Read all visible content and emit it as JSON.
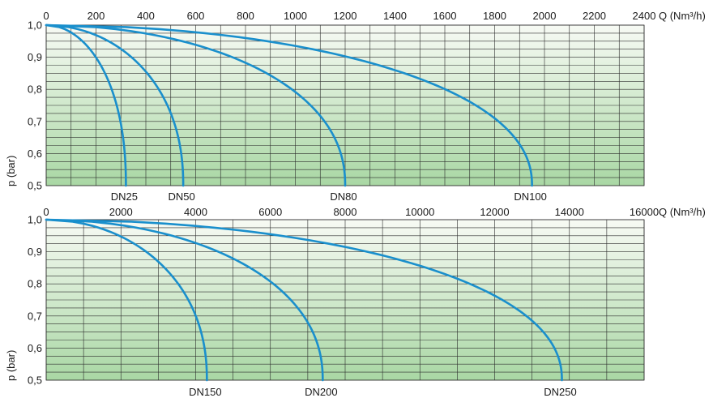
{
  "chart_data": [
    {
      "type": "line",
      "x_ticks": [
        "0",
        "200",
        "400",
        "600",
        "800",
        "1000",
        "1200",
        "1400",
        "1600",
        "1800",
        "2000",
        "2200",
        "2400"
      ],
      "x_grid_step": 100,
      "xlim": [
        0,
        2400
      ],
      "xlabel": "Q (Nm³/h)",
      "ylabel": "p (bar)",
      "y_ticks": [
        "1,0",
        "0,9",
        "0,8",
        "0,7",
        "0,6",
        "0,5"
      ],
      "ylim": [
        0.5,
        1.0
      ],
      "grid": true,
      "series": [
        {
          "name": "DN25",
          "flow_max": 320,
          "p": [
            1.0,
            0.5
          ]
        },
        {
          "name": "DN50",
          "flow_max": 550,
          "p": [
            1.0,
            0.5
          ]
        },
        {
          "name": "DN80",
          "flow_max": 1200,
          "p": [
            1.0,
            0.5
          ]
        },
        {
          "name": "DN100",
          "flow_max": 1950,
          "p": [
            1.0,
            0.5
          ]
        }
      ],
      "colors": {
        "line": "#1a8fcc",
        "bg_top": "#f6f9f3",
        "bg_bottom": "#a9d7a4"
      }
    },
    {
      "type": "line",
      "x_ticks": [
        "0",
        "2000",
        "4000",
        "6000",
        "8000",
        "10000",
        "12000",
        "14000",
        "16000"
      ],
      "x_grid_step": 1000,
      "xlim": [
        0,
        16000
      ],
      "xlabel": "Q (Nm³/h)",
      "ylabel": "p (bar)",
      "y_ticks": [
        "1,0",
        "0,9",
        "0,8",
        "0,7",
        "0,6",
        "0,5"
      ],
      "ylim": [
        0.5,
        1.0
      ],
      "grid": true,
      "series": [
        {
          "name": "DN150",
          "flow_max": 4300,
          "p": [
            1.0,
            0.5
          ]
        },
        {
          "name": "DN200",
          "flow_max": 7400,
          "p": [
            1.0,
            0.5
          ]
        },
        {
          "name": "DN250",
          "flow_max": 13800,
          "p": [
            1.0,
            0.5
          ]
        }
      ],
      "colors": {
        "line": "#1a8fcc",
        "bg_top": "#f6f9f3",
        "bg_bottom": "#a9d7a4"
      }
    }
  ]
}
